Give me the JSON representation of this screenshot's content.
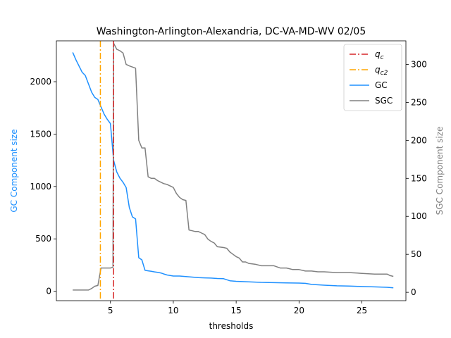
{
  "chart_data": {
    "type": "line",
    "title": "Washington-Arlington-Alexandria, DC-VA-MD-WV 02/05",
    "xlabel": "thresholds",
    "ylabel_left": "GC Component size",
    "ylabel_right": "SGC Component size",
    "xlim": [
      0.7,
      28.5
    ],
    "ylim_left": [
      -90,
      2390
    ],
    "ylim_right": [
      -11,
      331
    ],
    "x_ticks": [
      5,
      10,
      15,
      20,
      25
    ],
    "y_left_ticks": [
      0,
      500,
      1000,
      1500,
      2000
    ],
    "y_right_ticks": [
      0,
      50,
      100,
      150,
      200,
      250,
      300
    ],
    "colors": {
      "qc": "#d62728",
      "qc2": "#ffa500",
      "gc": "#1e90ff",
      "sgc": "#808080"
    },
    "legend": {
      "placement": "top-right",
      "entries": [
        {
          "key": "qc",
          "main": "q",
          "sub": "c"
        },
        {
          "key": "qc2",
          "main": "q",
          "sub": "c2"
        },
        {
          "key": "gc",
          "label": "GC"
        },
        {
          "key": "sgc",
          "label": "SGC"
        }
      ]
    },
    "vlines": [
      {
        "key": "qc",
        "x": 5.25
      },
      {
        "key": "qc2",
        "x": 4.2
      }
    ],
    "series": [
      {
        "key": "gc",
        "name": "GC",
        "axis": "left",
        "x": [
          2.0,
          2.25,
          2.5,
          2.75,
          3.0,
          3.25,
          3.5,
          3.75,
          4.0,
          4.25,
          4.5,
          4.75,
          5.0,
          5.25,
          5.5,
          5.75,
          6.0,
          6.25,
          6.5,
          6.75,
          7.0,
          7.25,
          7.5,
          7.75,
          8.0,
          8.25,
          8.5,
          8.75,
          9.0,
          9.25,
          9.5,
          9.75,
          10.0,
          10.5,
          11.0,
          11.5,
          12.0,
          12.5,
          13.0,
          13.5,
          14.0,
          14.5,
          15.0,
          15.5,
          16.0,
          17.0,
          18.0,
          19.0,
          20.0,
          20.5,
          21.0,
          22.0,
          23.0,
          24.0,
          25.0,
          26.0,
          27.0,
          27.5
        ],
        "values": [
          2280,
          2210,
          2150,
          2090,
          2060,
          1980,
          1900,
          1850,
          1830,
          1760,
          1690,
          1640,
          1600,
          1250,
          1140,
          1080,
          1040,
          990,
          800,
          710,
          690,
          320,
          300,
          200,
          195,
          190,
          185,
          180,
          175,
          165,
          155,
          150,
          145,
          145,
          140,
          135,
          130,
          128,
          126,
          122,
          120,
          100,
          95,
          92,
          90,
          85,
          82,
          80,
          78,
          75,
          65,
          58,
          52,
          50,
          45,
          42,
          38,
          32
        ]
      },
      {
        "key": "sgc",
        "name": "SGC",
        "axis": "right",
        "x": [
          2.0,
          2.5,
          3.0,
          3.25,
          3.5,
          3.75,
          4.0,
          4.25,
          4.5,
          5.0,
          5.2,
          5.25,
          5.5,
          5.75,
          6.0,
          6.25,
          6.5,
          7.0,
          7.25,
          7.5,
          7.75,
          8.0,
          8.25,
          8.5,
          8.75,
          9.0,
          9.25,
          9.5,
          9.75,
          10.0,
          10.25,
          10.5,
          10.75,
          11.0,
          11.25,
          11.5,
          11.75,
          12.0,
          12.25,
          12.5,
          12.75,
          13.0,
          13.25,
          13.5,
          14.0,
          14.25,
          14.5,
          14.75,
          15.0,
          15.25,
          15.5,
          15.75,
          16.0,
          16.5,
          17.0,
          17.5,
          18.0,
          18.5,
          19.0,
          19.5,
          20.0,
          20.5,
          21.0,
          21.5,
          22.0,
          23.0,
          24.0,
          25.0,
          26.0,
          27.0,
          27.25,
          27.5
        ],
        "values": [
          3,
          3,
          3,
          3,
          5,
          8,
          9,
          32,
          32,
          32,
          33,
          328,
          320,
          318,
          315,
          300,
          298,
          295,
          200,
          190,
          190,
          152,
          150,
          150,
          147,
          145,
          143,
          142,
          140,
          138,
          130,
          125,
          122,
          121,
          82,
          81,
          80,
          80,
          78,
          76,
          70,
          67,
          65,
          60,
          59,
          58,
          53,
          50,
          47,
          45,
          40,
          40,
          38,
          37,
          35,
          35,
          35,
          32,
          32,
          30,
          30,
          28,
          28,
          27,
          27,
          26,
          26,
          25,
          24,
          24,
          22,
          21
        ]
      }
    ]
  }
}
